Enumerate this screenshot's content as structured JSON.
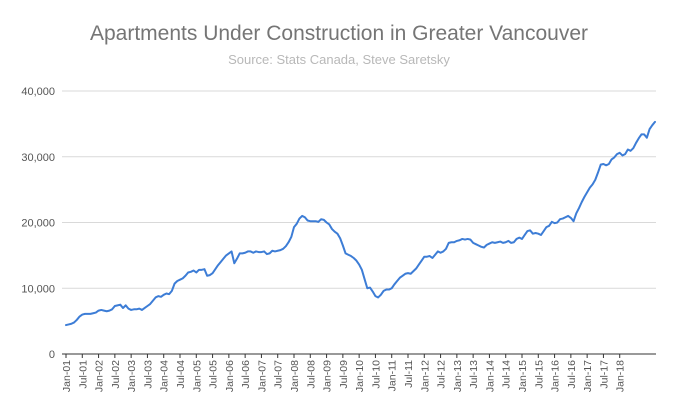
{
  "chart_data": {
    "type": "line",
    "title": "Apartments Under Construction in Greater Vancouver",
    "subtitle": "Source: Stats Canada, Steve Saretsky",
    "xlabel": "",
    "ylabel": "",
    "ylim": [
      0,
      40000
    ],
    "yticks": [
      "0",
      "10,000",
      "20,000",
      "30,000",
      "40,000"
    ],
    "ytick_values": [
      0,
      10000,
      20000,
      30000,
      40000
    ],
    "grid": true,
    "legend": "none",
    "color": "#3d7dd6",
    "x_tick_labels": [
      "Jan-01",
      "Jul-01",
      "Jan-02",
      "Jul-02",
      "Jan-03",
      "Jul-03",
      "Jan-04",
      "Jul-04",
      "Jan-05",
      "Jul-05",
      "Jan-06",
      "Jul-06",
      "Jan-07",
      "Jul-07",
      "Jan-08",
      "Jul-08",
      "Jan-09",
      "Jul-09",
      "Jan-10",
      "Jul-10",
      "Jan-11",
      "Jul-11",
      "Jan-12",
      "Jul-12",
      "Jan-13",
      "Jul-13",
      "Jan-14",
      "Jul-14",
      "Jan-15",
      "Jul-15",
      "Jan-16",
      "Jul-16",
      "Jan-17",
      "Jul-17",
      "Jan-18"
    ],
    "x_start": "Jan-01",
    "series": [
      {
        "values": [
          4400,
          4500,
          4600,
          4800,
          5200,
          5700,
          6000,
          6100,
          6100,
          6100,
          6200,
          6300,
          6600,
          6700,
          6600,
          6500,
          6600,
          6800,
          7300,
          7400,
          7500,
          7000,
          7400,
          6900,
          6700,
          6800,
          6800,
          6900,
          6700,
          7000,
          7300,
          7600,
          8100,
          8600,
          8800,
          8700,
          9000,
          9200,
          9100,
          9600,
          10700,
          11100,
          11300,
          11500,
          11900,
          12400,
          12500,
          12700,
          12400,
          12800,
          12800,
          12900,
          11900,
          12000,
          12300,
          12900,
          13500,
          14000,
          14500,
          15000,
          15300,
          15600,
          13800,
          14500,
          15300,
          15300,
          15400,
          15600,
          15600,
          15400,
          15600,
          15500,
          15500,
          15600,
          15200,
          15300,
          15700,
          15600,
          15700,
          15800,
          16000,
          16400,
          17000,
          17800,
          19300,
          19800,
          20600,
          21000,
          20800,
          20300,
          20200,
          20200,
          20200,
          20100,
          20500,
          20400,
          20000,
          19700,
          19000,
          18600,
          18300,
          17600,
          16500,
          15300,
          15100,
          14900,
          14600,
          14200,
          13600,
          12800,
          11400,
          10000,
          10100,
          9500,
          8800,
          8600,
          9000,
          9600,
          9800,
          9800,
          10000,
          10600,
          11100,
          11600,
          11900,
          12200,
          12300,
          12200,
          12600,
          13000,
          13600,
          14200,
          14800,
          14800,
          14900,
          14600,
          15100,
          15600,
          15400,
          15600,
          16000,
          16900,
          17000,
          17000,
          17200,
          17300,
          17500,
          17400,
          17500,
          17400,
          16900,
          16700,
          16500,
          16300,
          16200,
          16600,
          16800,
          17000,
          16900,
          17000,
          17100,
          16900,
          17000,
          17200,
          16900,
          17000,
          17500,
          17700,
          17500,
          18100,
          18700,
          18800,
          18300,
          18400,
          18300,
          18100,
          18700,
          19300,
          19500,
          20100,
          19900,
          20000,
          20500,
          20600,
          20800,
          21000,
          20700,
          20200,
          21400,
          22200,
          23100,
          23900,
          24600,
          25300,
          25800,
          26500,
          27600,
          28800,
          28900,
          28700,
          28900,
          29600,
          29900,
          30400,
          30600,
          30200,
          30400,
          31100,
          30900,
          31300,
          32100,
          32800,
          33400,
          33400,
          32900,
          34200,
          34800,
          35300
        ]
      }
    ]
  }
}
